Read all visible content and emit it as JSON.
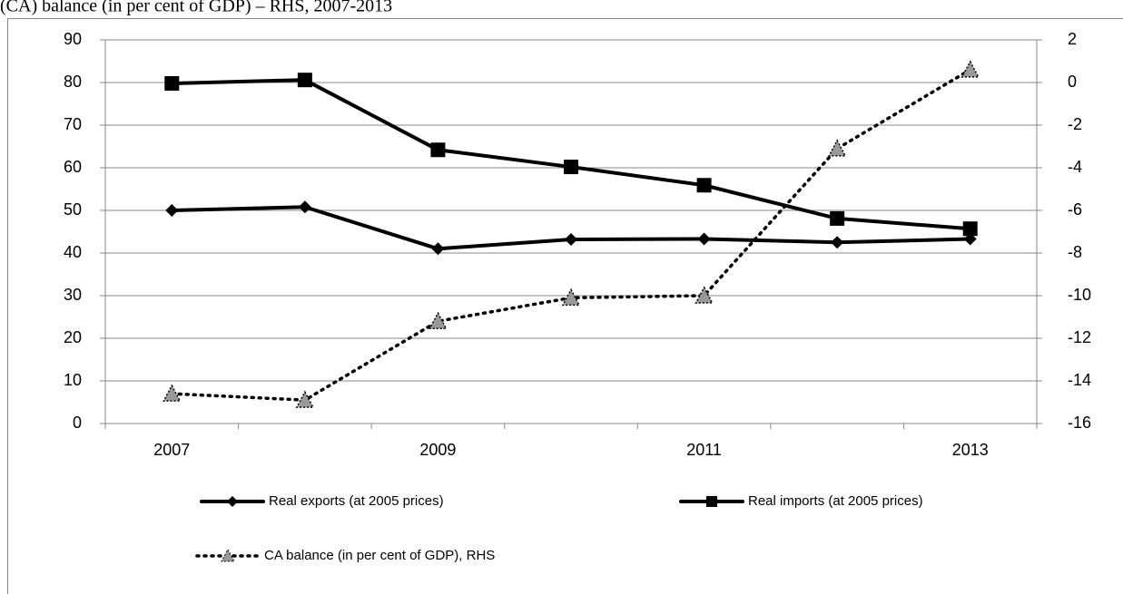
{
  "chart_data": {
    "type": "line",
    "title": "(CA) balance (in per cent of GDP) – RHS, 2007-2013",
    "categories": [
      "2007",
      null,
      "2009",
      null,
      "2011",
      null,
      "2013"
    ],
    "series": [
      {
        "name": "Real exports (at 2005 prices)",
        "color": "#000000",
        "marker": "diamond",
        "dash": "solid",
        "axis": "y",
        "values": [
          50,
          50.8,
          41,
          43.2,
          43.3,
          42.5,
          43.3
        ]
      },
      {
        "name": "Real imports (at 2005 prices)",
        "color": "#000000",
        "marker": "square",
        "dash": "solid",
        "axis": "y",
        "values": [
          79.8,
          80.6,
          64.2,
          60.2,
          55.9,
          48.1,
          45.7
        ]
      },
      {
        "name": "CA balance (in per cent of GDP), RHS",
        "color": "#000000",
        "marker": "triangle",
        "dash": "dotted",
        "axis": "y2",
        "values": [
          -14.6,
          -14.9,
          -11.2,
          -10.1,
          -10.0,
          -3.1,
          0.6
        ]
      }
    ],
    "ylim": [
      0,
      90
    ],
    "yticks": [
      0,
      10,
      20,
      30,
      40,
      50,
      60,
      70,
      80,
      90
    ],
    "y2lim": [
      -16,
      2
    ],
    "y2ticks": [
      -16,
      -14,
      -12,
      -10,
      -8,
      -6,
      -4,
      -2,
      0,
      2
    ],
    "grid": true
  }
}
